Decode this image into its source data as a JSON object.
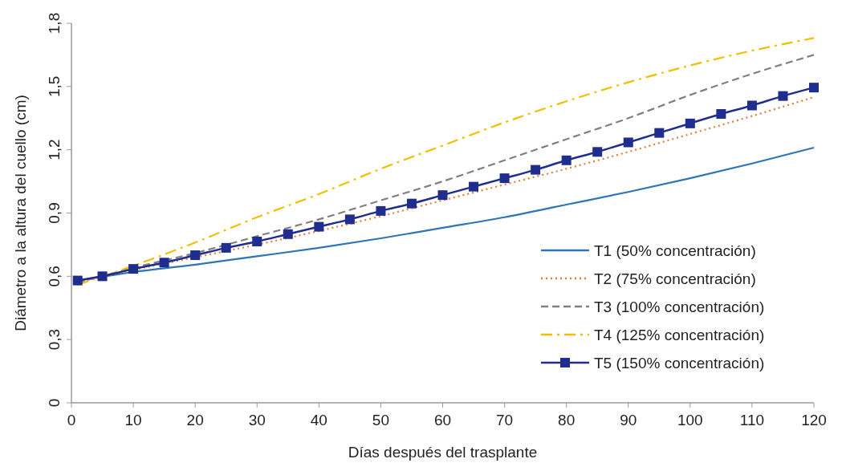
{
  "chart_data": {
    "type": "line",
    "xlabel": "Días después del trasplante",
    "ylabel": "Diámetro a la altura del cuello (cm)",
    "xlim": [
      0,
      120
    ],
    "xticks": [
      0,
      10,
      20,
      30,
      40,
      50,
      60,
      70,
      80,
      90,
      100,
      110,
      120
    ],
    "ylim": [
      0,
      1.8
    ],
    "yticks": [
      {
        "value": 0,
        "label": "0"
      },
      {
        "value": 0.3,
        "label": "0,3"
      },
      {
        "value": 0.6,
        "label": "0,6"
      },
      {
        "value": 0.9,
        "label": "0,9"
      },
      {
        "value": 1.2,
        "label": "1,2"
      },
      {
        "value": 1.5,
        "label": "1,5"
      },
      {
        "value": 1.8,
        "label": "1,8"
      }
    ],
    "grid": false,
    "legend": "bottom right",
    "series": [
      {
        "name": "T1 (50% concentración)",
        "color": "#2e75b6",
        "line_style": "solid",
        "marker": "none",
        "x": [
          1,
          10,
          20,
          30,
          40,
          50,
          60,
          70,
          80,
          90,
          100,
          110,
          120
        ],
        "values": [
          0.58,
          0.62,
          0.655,
          0.695,
          0.735,
          0.78,
          0.83,
          0.88,
          0.94,
          1.0,
          1.065,
          1.135,
          1.21
        ]
      },
      {
        "name": "T2 (75% concentración)",
        "color": "#e07b39",
        "line_style": "dotted",
        "marker": "none",
        "x": [
          1,
          10,
          20,
          30,
          40,
          50,
          60,
          70,
          80,
          90,
          100,
          110,
          120
        ],
        "values": [
          0.57,
          0.63,
          0.69,
          0.75,
          0.815,
          0.885,
          0.96,
          1.035,
          1.11,
          1.19,
          1.275,
          1.36,
          1.45
        ]
      },
      {
        "name": "T3 (100% concentración)",
        "color": "#808080",
        "line_style": "dashed",
        "marker": "none",
        "x": [
          1,
          10,
          20,
          30,
          40,
          50,
          60,
          70,
          80,
          90,
          100,
          110,
          120
        ],
        "values": [
          0.57,
          0.64,
          0.71,
          0.79,
          0.87,
          0.96,
          1.05,
          1.15,
          1.25,
          1.35,
          1.46,
          1.56,
          1.65
        ]
      },
      {
        "name": "T4 (125% concentración)",
        "color": "#f0c000",
        "line_style": "dashdot",
        "marker": "none",
        "x": [
          1,
          10,
          20,
          30,
          40,
          50,
          60,
          70,
          80,
          90,
          100,
          110,
          120
        ],
        "values": [
          0.56,
          0.65,
          0.76,
          0.88,
          0.99,
          1.11,
          1.22,
          1.33,
          1.43,
          1.52,
          1.6,
          1.67,
          1.73
        ]
      },
      {
        "name": "T5 (150% concentración)",
        "color": "#1f2d8f",
        "line_style": "solid",
        "marker": "square",
        "x": [
          1,
          5,
          10,
          15,
          20,
          25,
          30,
          35,
          40,
          45,
          50,
          55,
          60,
          65,
          70,
          75,
          80,
          85,
          90,
          95,
          100,
          105,
          110,
          115,
          120
        ],
        "values": [
          0.58,
          0.6,
          0.635,
          0.665,
          0.7,
          0.735,
          0.765,
          0.8,
          0.835,
          0.87,
          0.91,
          0.945,
          0.985,
          1.025,
          1.065,
          1.105,
          1.15,
          1.19,
          1.235,
          1.28,
          1.325,
          1.37,
          1.41,
          1.455,
          1.495
        ]
      }
    ]
  }
}
